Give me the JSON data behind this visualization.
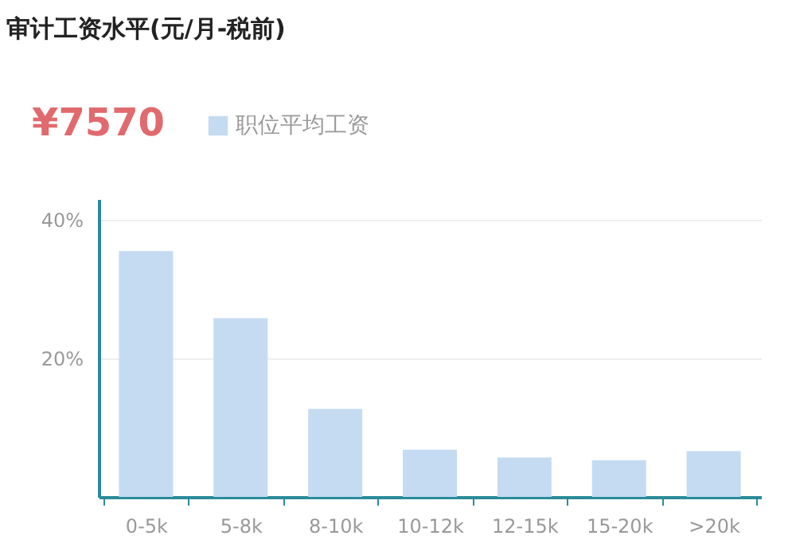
{
  "chart_data": {
    "type": "bar",
    "title": "审计工资水平(元/月-税前)",
    "annotations": [
      "¥7570"
    ],
    "categories": [
      "0-5k",
      "5-8k",
      "8-10k",
      "10-12k",
      "12-15k",
      "15-20k",
      ">20k"
    ],
    "series": [
      {
        "name": "职位平均工资",
        "color": "#c5dbf2",
        "values": [
          35.5,
          25.8,
          12.7,
          6.8,
          5.7,
          5.3,
          6.6
        ]
      }
    ],
    "ylim": [
      0,
      43
    ],
    "yticks": [
      {
        "value": 0,
        "label": null
      },
      {
        "value": 20,
        "label": "20%"
      },
      {
        "value": 40,
        "label": "40%"
      }
    ],
    "grid": "y",
    "legend": "top left"
  }
}
